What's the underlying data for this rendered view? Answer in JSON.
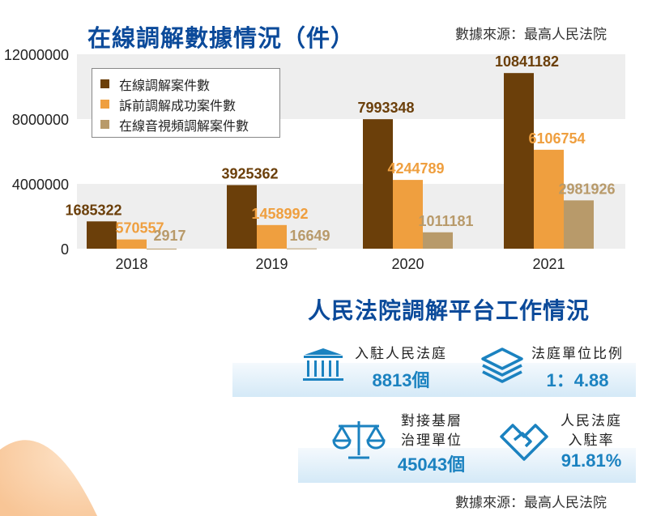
{
  "title": "在線調解數據情況（件）",
  "source_top": "數據來源：最高人民法院",
  "chart_data": {
    "type": "bar",
    "title": "在線調解數據情況（件）",
    "categories": [
      "2018",
      "2019",
      "2020",
      "2021"
    ],
    "series": [
      {
        "name": "在線調解案件數",
        "values": [
          1685322,
          3925362,
          7993348,
          10841182
        ],
        "color": "#6b3f0a"
      },
      {
        "name": "訴前調解成功案件數",
        "values": [
          570557,
          1458992,
          4244789,
          6106754
        ],
        "color": "#ef9f3f"
      },
      {
        "name": "在線音視頻調解案件數",
        "values": [
          2917,
          16649,
          1011181,
          2981926
        ],
        "color": "#b89a6a"
      }
    ],
    "yticks": [
      "0",
      "4000000",
      "8000000",
      "12000000"
    ],
    "ylim": [
      0,
      12000000
    ],
    "legend": "top-left",
    "grid": "alternating bands"
  },
  "panel": {
    "title": "人民法院調解平台工作情況",
    "cards": [
      {
        "label": "入駐人民法庭",
        "value": "8813個",
        "icon": "courthouse-icon"
      },
      {
        "label": "法庭單位比例",
        "value": "1：4.88",
        "icon": "layers-icon"
      },
      {
        "label_lines": [
          "對接基層",
          "治理單位"
        ],
        "value": "45043個",
        "icon": "scales-icon"
      },
      {
        "label_lines": [
          "人民法庭",
          "入駐率"
        ],
        "value": "91.81%",
        "icon": "handshake-icon"
      }
    ],
    "accent": "#1b82c0"
  },
  "source_bottom": "數據來源：最高人民法院"
}
